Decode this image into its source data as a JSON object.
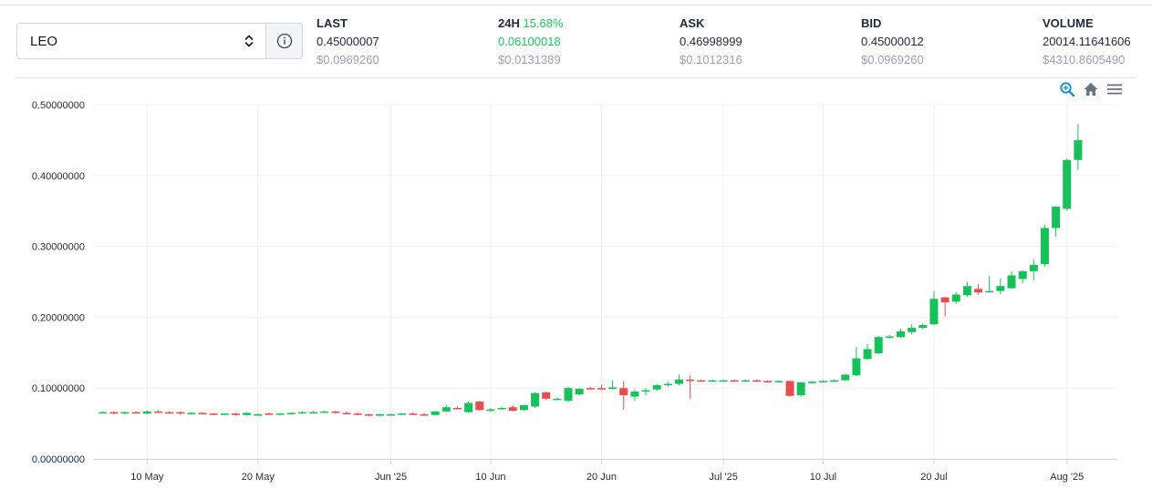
{
  "selector": {
    "value": "LEO"
  },
  "stats": {
    "last": {
      "label": "LAST",
      "value": "0.45000007",
      "usd": "$0.0969260"
    },
    "change": {
      "label": "24H",
      "percent": "15.68%",
      "value": "0.06100018",
      "usd": "$0.0131389"
    },
    "ask": {
      "label": "ASK",
      "value": "0.46998999",
      "usd": "$0.1012316"
    },
    "bid": {
      "label": "BID",
      "value": "0.45000012",
      "usd": "$0.0969260"
    },
    "volume": {
      "label": "VOLUME",
      "value": "20014.11641606",
      "usd": "$4310.8605490"
    }
  },
  "toolbar": {
    "icons": [
      "zoom-in-icon",
      "home-icon",
      "menu-icon"
    ]
  },
  "colors": {
    "up": "#16c15a",
    "down": "#e84d4d",
    "accent": "#1a8fd6",
    "positive_text": "#22c55e"
  },
  "chart_data": {
    "type": "candlestick",
    "ylim": [
      0,
      0.5
    ],
    "y_ticks": [
      {
        "v": 0.0,
        "label": "0.00000000"
      },
      {
        "v": 0.1,
        "label": "0.10000000"
      },
      {
        "v": 0.2,
        "label": "0.20000000"
      },
      {
        "v": 0.3,
        "label": "0.30000000"
      },
      {
        "v": 0.4,
        "label": "0.40000000"
      },
      {
        "v": 0.5,
        "label": "0.50000000"
      }
    ],
    "x_ticks": [
      {
        "i": 4,
        "label": "10 May"
      },
      {
        "i": 14,
        "label": "20 May"
      },
      {
        "i": 26,
        "label": "Jun '25"
      },
      {
        "i": 35,
        "label": "10 Jun"
      },
      {
        "i": 45,
        "label": "20 Jun"
      },
      {
        "i": 56,
        "label": "Jul '25"
      },
      {
        "i": 65,
        "label": "10 Jul"
      },
      {
        "i": 75,
        "label": "20 Jul"
      },
      {
        "i": 87,
        "label": "Aug '25"
      }
    ],
    "x_grid": [
      4,
      14,
      26,
      35,
      45,
      56,
      65,
      75,
      87
    ],
    "grid": true,
    "candles": [
      [
        0.066,
        0.067,
        0.065,
        0.066
      ],
      [
        0.066,
        0.067,
        0.063,
        0.064
      ],
      [
        0.064,
        0.067,
        0.063,
        0.066
      ],
      [
        0.066,
        0.067,
        0.064,
        0.064
      ],
      [
        0.064,
        0.068,
        0.063,
        0.067
      ],
      [
        0.067,
        0.069,
        0.065,
        0.066
      ],
      [
        0.066,
        0.067,
        0.064,
        0.064
      ],
      [
        0.066,
        0.067,
        0.062,
        0.064
      ],
      [
        0.064,
        0.066,
        0.063,
        0.065
      ],
      [
        0.065,
        0.066,
        0.063,
        0.064
      ],
      [
        0.064,
        0.065,
        0.062,
        0.063
      ],
      [
        0.063,
        0.064,
        0.062,
        0.064
      ],
      [
        0.064,
        0.065,
        0.061,
        0.062
      ],
      [
        0.062,
        0.066,
        0.061,
        0.065
      ],
      [
        0.063,
        0.064,
        0.061,
        0.063
      ],
      [
        0.064,
        0.066,
        0.062,
        0.063
      ],
      [
        0.063,
        0.065,
        0.062,
        0.064
      ],
      [
        0.064,
        0.066,
        0.063,
        0.065
      ],
      [
        0.065,
        0.067,
        0.064,
        0.066
      ],
      [
        0.066,
        0.068,
        0.065,
        0.066
      ],
      [
        0.066,
        0.068,
        0.065,
        0.067
      ],
      [
        0.067,
        0.068,
        0.064,
        0.065
      ],
      [
        0.065,
        0.067,
        0.063,
        0.064
      ],
      [
        0.064,
        0.066,
        0.062,
        0.063
      ],
      [
        0.063,
        0.064,
        0.06,
        0.061
      ],
      [
        0.061,
        0.064,
        0.06,
        0.063
      ],
      [
        0.062,
        0.064,
        0.061,
        0.063
      ],
      [
        0.063,
        0.065,
        0.062,
        0.064
      ],
      [
        0.064,
        0.066,
        0.062,
        0.063
      ],
      [
        0.063,
        0.065,
        0.061,
        0.062
      ],
      [
        0.062,
        0.068,
        0.061,
        0.067
      ],
      [
        0.067,
        0.076,
        0.066,
        0.073
      ],
      [
        0.072,
        0.074,
        0.07,
        0.071
      ],
      [
        0.066,
        0.081,
        0.065,
        0.079
      ],
      [
        0.081,
        0.082,
        0.068,
        0.069
      ],
      [
        0.068,
        0.072,
        0.066,
        0.07
      ],
      [
        0.071,
        0.073,
        0.069,
        0.072
      ],
      [
        0.073,
        0.076,
        0.067,
        0.068
      ],
      [
        0.069,
        0.076,
        0.068,
        0.076
      ],
      [
        0.074,
        0.094,
        0.072,
        0.093
      ],
      [
        0.094,
        0.095,
        0.083,
        0.085
      ],
      [
        0.084,
        0.087,
        0.083,
        0.085
      ],
      [
        0.082,
        0.102,
        0.08,
        0.1
      ],
      [
        0.091,
        0.1,
        0.09,
        0.099
      ],
      [
        0.1,
        0.102,
        0.098,
        0.099
      ],
      [
        0.1,
        0.105,
        0.097,
        0.098
      ],
      [
        0.099,
        0.111,
        0.098,
        0.101
      ],
      [
        0.1,
        0.11,
        0.07,
        0.09
      ],
      [
        0.088,
        0.098,
        0.082,
        0.095
      ],
      [
        0.096,
        0.1,
        0.09,
        0.097
      ],
      [
        0.098,
        0.106,
        0.096,
        0.104
      ],
      [
        0.104,
        0.109,
        0.102,
        0.106
      ],
      [
        0.106,
        0.119,
        0.104,
        0.112
      ],
      [
        0.112,
        0.118,
        0.085,
        0.11
      ],
      [
        0.111,
        0.112,
        0.109,
        0.11
      ],
      [
        0.11,
        0.112,
        0.109,
        0.111
      ],
      [
        0.111,
        0.112,
        0.11,
        0.111
      ],
      [
        0.111,
        0.112,
        0.109,
        0.11
      ],
      [
        0.11,
        0.112,
        0.109,
        0.111
      ],
      [
        0.111,
        0.112,
        0.109,
        0.11
      ],
      [
        0.11,
        0.111,
        0.108,
        0.108
      ],
      [
        0.109,
        0.111,
        0.108,
        0.11
      ],
      [
        0.11,
        0.111,
        0.088,
        0.089
      ],
      [
        0.09,
        0.109,
        0.088,
        0.108
      ],
      [
        0.107,
        0.11,
        0.106,
        0.109
      ],
      [
        0.109,
        0.111,
        0.108,
        0.11
      ],
      [
        0.11,
        0.112,
        0.109,
        0.111
      ],
      [
        0.111,
        0.12,
        0.11,
        0.119
      ],
      [
        0.118,
        0.158,
        0.117,
        0.142
      ],
      [
        0.141,
        0.162,
        0.14,
        0.155
      ],
      [
        0.149,
        0.174,
        0.148,
        0.172
      ],
      [
        0.172,
        0.175,
        0.17,
        0.173
      ],
      [
        0.172,
        0.184,
        0.171,
        0.18
      ],
      [
        0.179,
        0.19,
        0.176,
        0.185
      ],
      [
        0.185,
        0.191,
        0.183,
        0.189
      ],
      [
        0.19,
        0.237,
        0.189,
        0.226
      ],
      [
        0.228,
        0.229,
        0.201,
        0.221
      ],
      [
        0.222,
        0.235,
        0.219,
        0.232
      ],
      [
        0.231,
        0.25,
        0.229,
        0.244
      ],
      [
        0.24,
        0.247,
        0.232,
        0.235
      ],
      [
        0.236,
        0.258,
        0.235,
        0.237
      ],
      [
        0.237,
        0.255,
        0.232,
        0.244
      ],
      [
        0.241,
        0.265,
        0.24,
        0.259
      ],
      [
        0.254,
        0.266,
        0.248,
        0.265
      ],
      [
        0.265,
        0.282,
        0.252,
        0.274
      ],
      [
        0.275,
        0.33,
        0.271,
        0.326
      ],
      [
        0.326,
        0.357,
        0.314,
        0.356
      ],
      [
        0.353,
        0.424,
        0.351,
        0.422
      ],
      [
        0.422,
        0.473,
        0.408,
        0.45
      ]
    ]
  }
}
